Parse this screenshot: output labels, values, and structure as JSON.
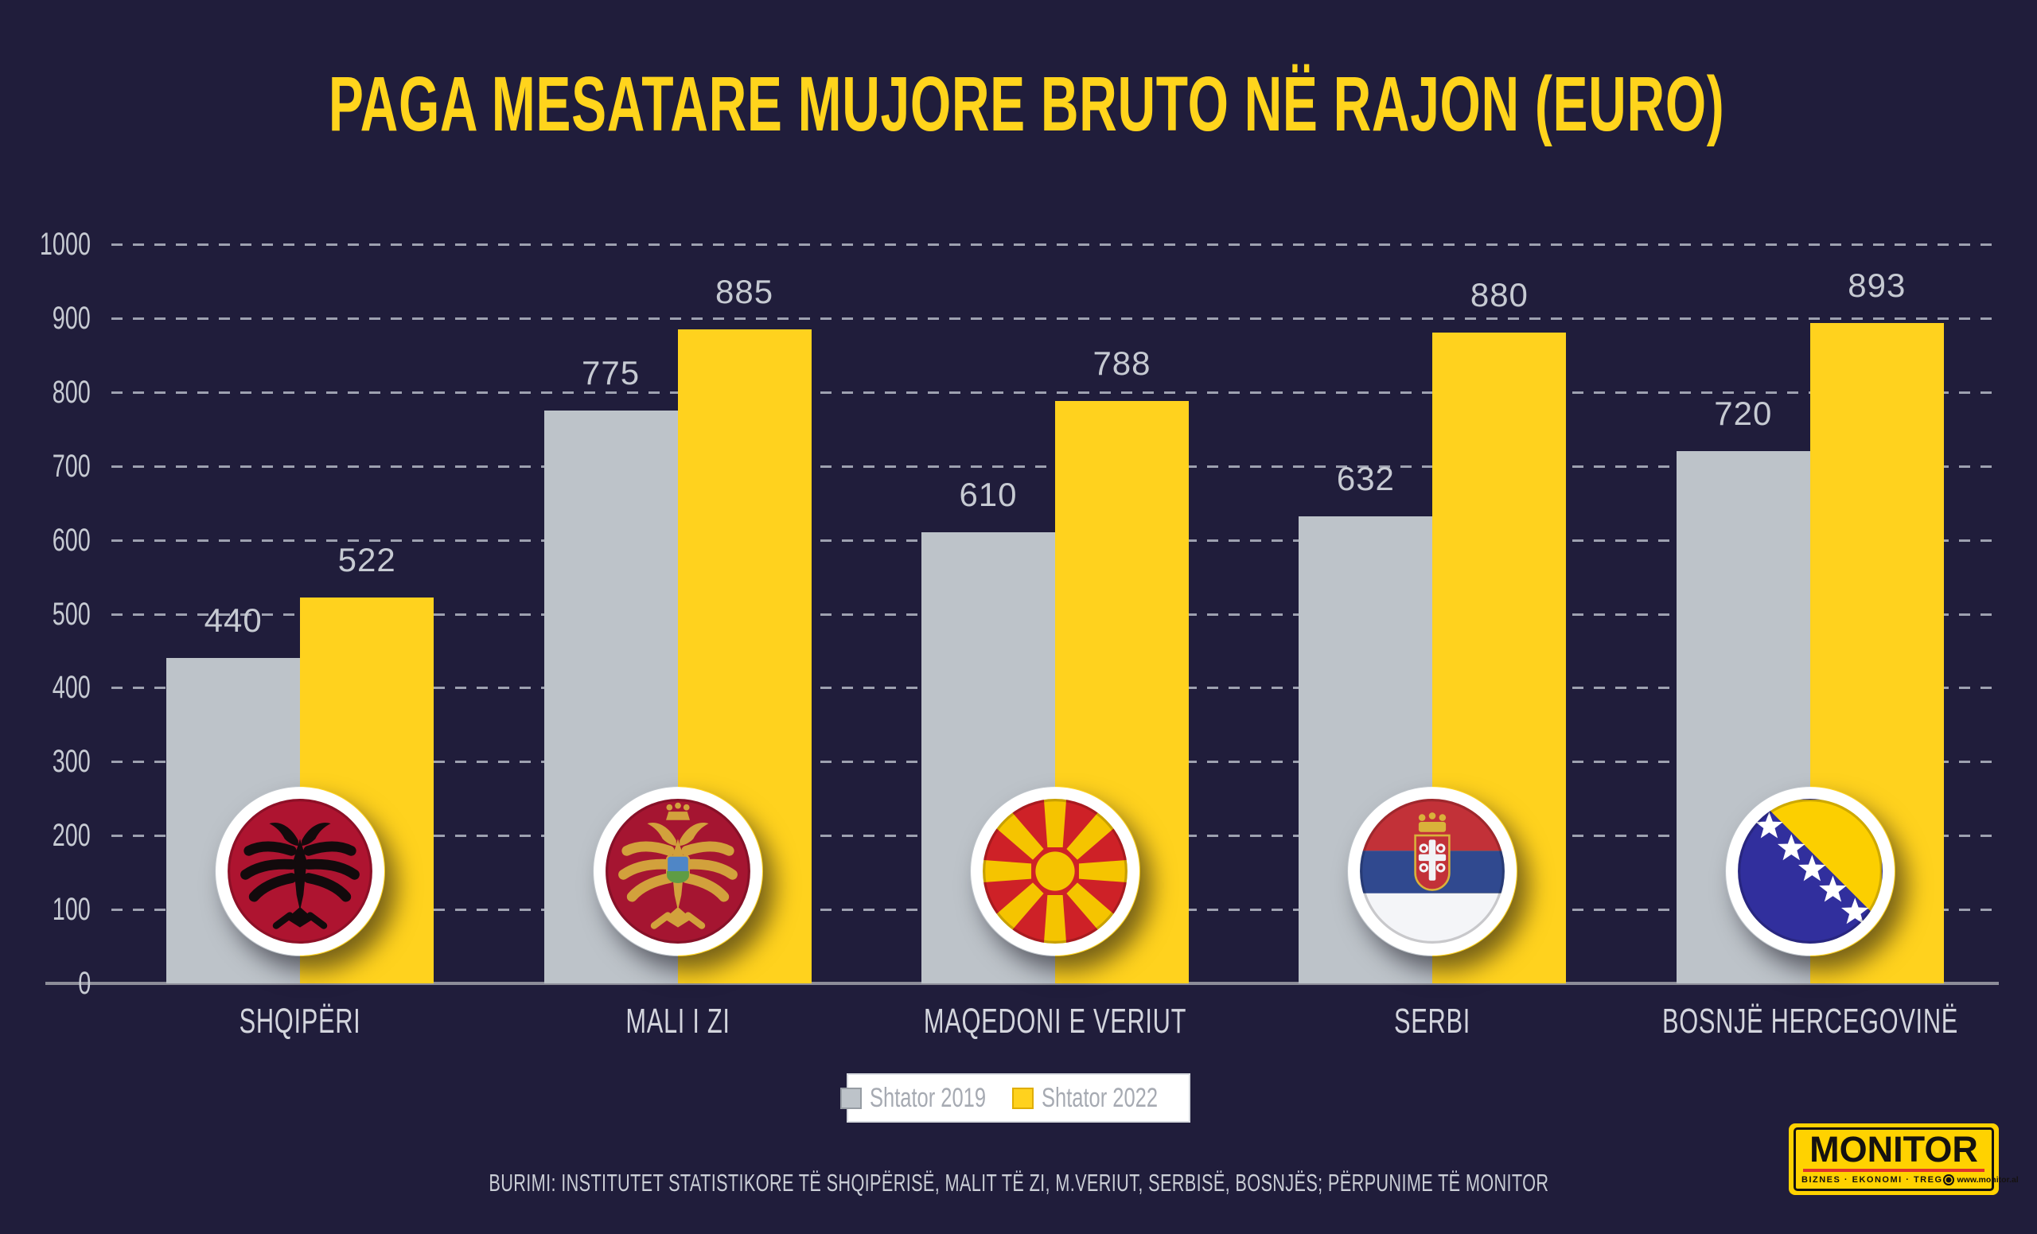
{
  "title": "PAGA MESATARE MUJORE BRUTO NË RAJON (EURO)",
  "colors": {
    "background": "#201D3B",
    "title": "#FFD41C",
    "series_2019": "#BDC3C9",
    "series_2022": "#FFD21E",
    "grid": "#ABAFBD",
    "axis_line": "#8D8D99",
    "tick_label": "#C6CAD2",
    "value_label": "#C6CAD2",
    "category_label": "#D3D5DD",
    "legend_text": "#A6AAB2",
    "legend_background": "#FFFFFF",
    "footer_text": "#CACED6",
    "logo_background": "#FFD200",
    "logo_red_bar": "#E0352B"
  },
  "chart_data": {
    "type": "bar",
    "title": "PAGA MESATARE MUJORE BRUTO NË RAJON (EURO)",
    "categories": [
      "SHQIPËRI",
      "MALI I ZI",
      "MAQEDONI E VERIUT",
      "SERBI",
      "BOSNJË HERCEGOVINË"
    ],
    "series": [
      {
        "name": "Shtator 2019",
        "color": "#BDC3C9",
        "values": [
          440,
          775,
          610,
          632,
          720
        ]
      },
      {
        "name": "Shtator 2022",
        "color": "#FFD21E",
        "values": [
          522,
          885,
          788,
          880,
          893
        ]
      }
    ],
    "ylim": [
      0,
      1000
    ],
    "yticks": [
      0,
      100,
      200,
      300,
      400,
      500,
      600,
      700,
      800,
      900,
      1000
    ],
    "grid": "horizontal-dashed",
    "legend_position": "bottom-center"
  },
  "flags": [
    "albania",
    "montenegro",
    "north-macedonia",
    "serbia",
    "bosnia-herzegovina"
  ],
  "legend": {
    "items": [
      {
        "label": "Shtator 2019",
        "color": "#BDC3C9"
      },
      {
        "label": "Shtator 2022",
        "color": "#FFD21E"
      }
    ]
  },
  "footer": {
    "source": "BURIMI: INSTITUTET STATISTIKORE TË SHQIPËRISË, MALIT TË ZI, M.VERIUT, SERBISË, BOSNJËS; PËRPUNIME TË MONITOR"
  },
  "logo": {
    "name": "MONITOR",
    "tagline": "BIZNES · EKONOMI · TREG",
    "website": "www.monitor.al"
  }
}
